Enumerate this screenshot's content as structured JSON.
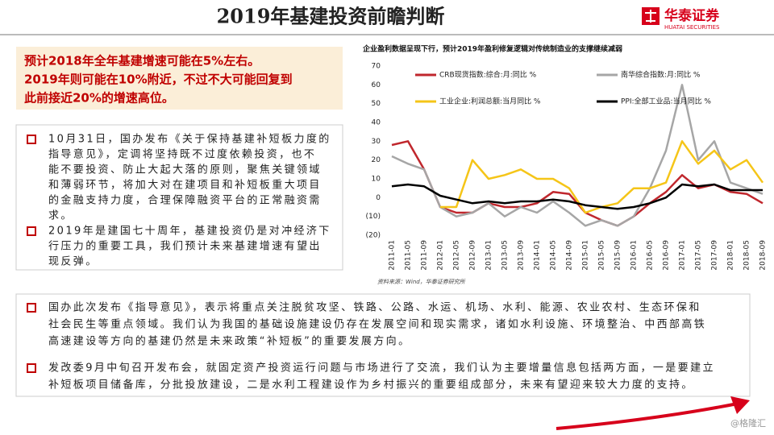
{
  "header": {
    "title": "2019年基建投资前瞻判断"
  },
  "logo": {
    "name": "华泰证券",
    "sub": "HUATAI SECURITIES"
  },
  "highlight": {
    "lines": [
      "预计2018年全年基建增速可能在5%左右。",
      "2019年则可能在10%附近，不过不大可能回复到",
      "此前接近20%的增速高位。"
    ]
  },
  "left_bullets": [
    {
      "lines": [
        "10月31日，国办发布《关于保持基建补短板力度的",
        "指导意见》，定调将坚持既不过度依赖投资，也不",
        "能不要投资、防止大起大落的原则，聚焦关键领域",
        "和薄弱环节，将加大对在建项目和补短板重大项目",
        "的金融支持力度，合理保障融资平台的正常融资需",
        "求。"
      ]
    },
    {
      "lines": [
        "2019年是建国七十周年，基建投资仍是对冲经济下",
        "行压力的重要工具，我们预计未来基建增速有望出",
        "现反弹。"
      ]
    }
  ],
  "bottom_bullets": [
    {
      "lines": [
        "国办此次发布《指导意见》，表示将重点关注脱贫攻坚、铁路、公路、水运、机场、水利、能源、农业农村、生态环保和",
        "社会民生等重点领域。我们认为我国的基础设施建设仍存在发展空间和现实需求，诸如水利设施、环境整治、中西部高铁",
        "高速建设等方向的基建仍然是未来政策“补短板”的重要发展方向。"
      ]
    },
    {
      "lines": [
        "发改委9月中旬召开发布会，就固定资产投资运行问题与市场进行了交流，我们认为主要增量信息包括两方面，一是要建立",
        "补短板项目储备库，分批投放建设，二是水利工程建设作为乡村振兴的重要组成部分，未来有望迎来较大力度的支持。"
      ]
    }
  ],
  "source": "资料来源：Wind，华泰证券研究所",
  "watermark": "@格隆汇",
  "chart_data": {
    "type": "line",
    "title": "企业盈利数据呈现下行，预计2019年盈利修复逻辑对传统制造业的支撑继续减弱",
    "categories": [
      "2011-01",
      "2011-05",
      "2011-09",
      "2012-01",
      "2012-05",
      "2012-09",
      "2013-01",
      "2013-05",
      "2013-09",
      "2014-01",
      "2014-05",
      "2014-09",
      "2015-01",
      "2015-05",
      "2015-09",
      "2016-01",
      "2016-05",
      "2016-09",
      "2017-01",
      "2017-05",
      "2017-09",
      "2018-01",
      "2018-05",
      "2018-09"
    ],
    "series": [
      {
        "name": "CRB现货指数:综合:月:同比 %",
        "color": "#c0272d",
        "values": [
          28,
          30,
          15,
          -5,
          -8,
          -8,
          -3,
          -5,
          -5,
          -3,
          3,
          2,
          -8,
          -12,
          -15,
          -10,
          -3,
          3,
          12,
          5,
          7,
          3,
          2,
          -3
        ]
      },
      {
        "name": "南华综合指数:月:同比 %",
        "color": "#a6a6a6",
        "values": [
          22,
          18,
          15,
          -5,
          -10,
          -8,
          -3,
          -10,
          -5,
          -8,
          -2,
          -8,
          -15,
          -12,
          -15,
          -10,
          5,
          25,
          60,
          20,
          30,
          8,
          5,
          2
        ]
      },
      {
        "name": "工业企业:利润总额:当月同比 %",
        "color": "#f5c518",
        "values": [
          null,
          null,
          null,
          -5,
          -5,
          20,
          10,
          12,
          15,
          10,
          10,
          5,
          -8,
          -5,
          -3,
          5,
          5,
          8,
          30,
          18,
          25,
          15,
          20,
          8
        ]
      },
      {
        "name": "PPI:全部工业品:当月同比 %",
        "color": "#000000",
        "values": [
          6,
          7,
          6,
          1,
          -1,
          -3,
          -2,
          -3,
          -2,
          -2,
          -1,
          -2,
          -4,
          -5,
          -6,
          -5,
          -3,
          0,
          7,
          6,
          7,
          4,
          4,
          4
        ]
      }
    ],
    "ylim": [
      -20,
      70
    ],
    "yticks": [
      {
        "value": -20,
        "label": "(20)"
      },
      {
        "value": -10,
        "label": "(10)"
      },
      0,
      10,
      20,
      30,
      40,
      50,
      60,
      70
    ]
  }
}
